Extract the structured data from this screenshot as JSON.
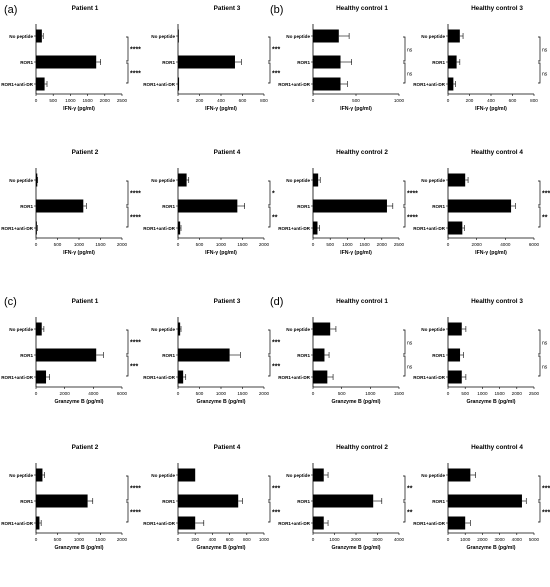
{
  "panel_labels": [
    "(a)",
    "(b)",
    "(c)",
    "(d)"
  ],
  "chart_data": [
    {
      "type": "bar",
      "orientation": "horizontal",
      "title": "Patient 1",
      "xlabel": "IFN-γ (pg/ml)",
      "categories": [
        "No peptide",
        "ROR1",
        "ROR1+anti-DR"
      ],
      "values": [
        170,
        1750,
        250
      ],
      "errors": [
        40,
        130,
        70
      ],
      "xlim": [
        0,
        2500
      ],
      "xticks": [
        "0",
        "500",
        "1000",
        "1500",
        "2000",
        "2500"
      ],
      "significance": [
        {
          "from": 0,
          "to": 1,
          "label": "****"
        },
        {
          "from": 1,
          "to": 2,
          "label": "****"
        }
      ]
    },
    {
      "type": "bar",
      "orientation": "horizontal",
      "title": "Patient 3",
      "xlabel": "IFN-γ (pg/ml)",
      "categories": [
        "No peptide",
        "ROR1",
        "ROR1+anti-DR"
      ],
      "values": [
        0,
        530,
        10
      ],
      "errors": [
        0,
        60,
        0
      ],
      "xlim": [
        0,
        800
      ],
      "xticks": [
        "0",
        "200",
        "400",
        "600",
        "800"
      ],
      "significance": [
        {
          "from": 0,
          "to": 1,
          "label": "***"
        },
        {
          "from": 1,
          "to": 2,
          "label": "***"
        }
      ]
    },
    {
      "type": "bar",
      "orientation": "horizontal",
      "title": "Healthy control 1",
      "xlabel": "IFN-γ (pg/ml)",
      "categories": [
        "No peptide",
        "ROR1",
        "ROR1+anti-DR"
      ],
      "values": [
        300,
        320,
        320
      ],
      "errors": [
        120,
        130,
        80
      ],
      "xlim": [
        0,
        1000
      ],
      "xticks": [
        "0",
        "500",
        "1000"
      ],
      "significance": [
        {
          "from": 0,
          "to": 1,
          "label": "ns"
        },
        {
          "from": 1,
          "to": 2,
          "label": "ns"
        }
      ]
    },
    {
      "type": "bar",
      "orientation": "horizontal",
      "title": "Healthy control 3",
      "xlabel": "IFN-γ (pg/ml)",
      "categories": [
        "No peptide",
        "ROR1",
        "ROR1+anti-DR"
      ],
      "values": [
        110,
        80,
        50
      ],
      "errors": [
        30,
        30,
        20
      ],
      "xlim": [
        0,
        800
      ],
      "xticks": [
        "0",
        "200",
        "400",
        "600",
        "800"
      ],
      "significance": [
        {
          "from": 0,
          "to": 1,
          "label": "ns"
        },
        {
          "from": 1,
          "to": 2,
          "label": "ns"
        }
      ]
    },
    {
      "type": "bar",
      "orientation": "horizontal",
      "title": "Patient 2",
      "xlabel": "IFN-γ (pg/ml)",
      "categories": [
        "No peptide",
        "ROR1",
        "ROR1+anti-DR"
      ],
      "values": [
        30,
        1100,
        20
      ],
      "errors": [
        10,
        70,
        10
      ],
      "xlim": [
        0,
        2000
      ],
      "xticks": [
        "0",
        "500",
        "1000",
        "1500",
        "2000"
      ],
      "significance": [
        {
          "from": 0,
          "to": 1,
          "label": "****"
        },
        {
          "from": 1,
          "to": 2,
          "label": "****"
        }
      ]
    },
    {
      "type": "bar",
      "orientation": "horizontal",
      "title": "Patient 4",
      "xlabel": "IFN-γ (pg/ml)",
      "categories": [
        "No peptide",
        "ROR1",
        "ROR1+anti-DR"
      ],
      "values": [
        200,
        1380,
        50
      ],
      "errors": [
        50,
        170,
        20
      ],
      "xlim": [
        0,
        2000
      ],
      "xticks": [
        "0",
        "500",
        "1000",
        "1500",
        "2000"
      ],
      "significance": [
        {
          "from": 0,
          "to": 1,
          "label": "*"
        },
        {
          "from": 1,
          "to": 2,
          "label": "**"
        }
      ]
    },
    {
      "type": "bar",
      "orientation": "horizontal",
      "title": "Healthy control 2",
      "xlabel": "IFN-γ (pg/ml)",
      "categories": [
        "No peptide",
        "ROR1",
        "ROR1+anti-DR"
      ],
      "values": [
        150,
        2150,
        130
      ],
      "errors": [
        60,
        170,
        60
      ],
      "xlim": [
        0,
        2500
      ],
      "xticks": [
        "0",
        "500",
        "1000",
        "1500",
        "2000",
        "2500"
      ],
      "significance": [
        {
          "from": 0,
          "to": 1,
          "label": "****"
        },
        {
          "from": 1,
          "to": 2,
          "label": "****"
        }
      ]
    },
    {
      "type": "bar",
      "orientation": "horizontal",
      "title": "Healthy control 4",
      "xlabel": "IFN-γ (pg/ml)",
      "categories": [
        "No peptide",
        "ROR1",
        "ROR1+anti-DR"
      ],
      "values": [
        1200,
        4400,
        1000
      ],
      "errors": [
        200,
        300,
        150
      ],
      "xlim": [
        0,
        6000
      ],
      "xticks": [
        "0",
        "2000",
        "4000",
        "6000"
      ],
      "significance": [
        {
          "from": 0,
          "to": 1,
          "label": "***"
        },
        {
          "from": 1,
          "to": 2,
          "label": "**"
        }
      ]
    },
    {
      "type": "bar",
      "orientation": "horizontal",
      "title": "Patient 1",
      "xlabel": "Granzyme B (pg/ml)",
      "categories": [
        "No peptide",
        "ROR1",
        "ROR1+anti-DR"
      ],
      "values": [
        400,
        4200,
        700
      ],
      "errors": [
        150,
        500,
        250
      ],
      "xlim": [
        0,
        6000
      ],
      "xticks": [
        "0",
        "2000",
        "4000",
        "6000"
      ],
      "significance": [
        {
          "from": 0,
          "to": 1,
          "label": "****"
        },
        {
          "from": 1,
          "to": 2,
          "label": "***"
        }
      ]
    },
    {
      "type": "bar",
      "orientation": "horizontal",
      "title": "Patient 3",
      "xlabel": "Granzyme B (pg/ml)",
      "categories": [
        "No peptide",
        "ROR1",
        "ROR1+anti-DR"
      ],
      "values": [
        50,
        1200,
        120
      ],
      "errors": [
        20,
        250,
        60
      ],
      "xlim": [
        0,
        2000
      ],
      "xticks": [
        "0",
        "500",
        "1000",
        "1500",
        "2000"
      ],
      "significance": [
        {
          "from": 0,
          "to": 1,
          "label": "***"
        },
        {
          "from": 1,
          "to": 2,
          "label": "***"
        }
      ]
    },
    {
      "type": "bar",
      "orientation": "horizontal",
      "title": "Healthy control 1",
      "xlabel": "Granzyme B (pg/ml)",
      "categories": [
        "No peptide",
        "ROR1",
        "ROR1+anti-DR"
      ],
      "values": [
        300,
        200,
        250
      ],
      "errors": [
        100,
        80,
        100
      ],
      "xlim": [
        0,
        1500
      ],
      "xticks": [
        "0",
        "500",
        "1000",
        "1500"
      ],
      "significance": [
        {
          "from": 0,
          "to": 1,
          "label": "ns"
        },
        {
          "from": 1,
          "to": 2,
          "label": "ns"
        }
      ]
    },
    {
      "type": "bar",
      "orientation": "horizontal",
      "title": "Healthy control 3",
      "xlabel": "Granzyme B (pg/ml)",
      "categories": [
        "No peptide",
        "ROR1",
        "ROR1+anti-DR"
      ],
      "values": [
        400,
        350,
        400
      ],
      "errors": [
        120,
        100,
        120
      ],
      "xlim": [
        0,
        2500
      ],
      "xticks": [
        "0",
        "500",
        "1000",
        "1500",
        "2000",
        "2500"
      ],
      "significance": [
        {
          "from": 0,
          "to": 1,
          "label": "ns"
        },
        {
          "from": 1,
          "to": 2,
          "label": "ns"
        }
      ]
    },
    {
      "type": "bar",
      "orientation": "horizontal",
      "title": "Patient 2",
      "xlabel": "Granzyme B (pg/ml)",
      "categories": [
        "No peptide",
        "ROR1",
        "ROR1+anti-DR"
      ],
      "values": [
        150,
        1200,
        80
      ],
      "errors": [
        50,
        120,
        40
      ],
      "xlim": [
        0,
        2000
      ],
      "xticks": [
        "0",
        "500",
        "1000",
        "1500",
        "2000"
      ],
      "significance": [
        {
          "from": 0,
          "to": 1,
          "label": "****"
        },
        {
          "from": 1,
          "to": 2,
          "label": "****"
        }
      ]
    },
    {
      "type": "bar",
      "orientation": "horizontal",
      "title": "Patient 4",
      "xlabel": "Granzyme B (pg/ml)",
      "categories": [
        "No peptide",
        "ROR1",
        "ROR1+anti-DR"
      ],
      "values": [
        200,
        700,
        200
      ],
      "errors": [
        0,
        50,
        100
      ],
      "xlim": [
        0,
        1000
      ],
      "xticks": [
        "0",
        "200",
        "400",
        "600",
        "800",
        "1000"
      ],
      "significance": [
        {
          "from": 0,
          "to": 1,
          "label": "***"
        },
        {
          "from": 1,
          "to": 2,
          "label": "***"
        }
      ]
    },
    {
      "type": "bar",
      "orientation": "horizontal",
      "title": "Healthy control 2",
      "xlabel": "Granzyme B (pg/ml)",
      "categories": [
        "No peptide",
        "ROR1",
        "ROR1+anti-DR"
      ],
      "values": [
        500,
        2800,
        500
      ],
      "errors": [
        200,
        400,
        200
      ],
      "xlim": [
        0,
        4000
      ],
      "xticks": [
        "0",
        "1000",
        "2000",
        "3000",
        "4000"
      ],
      "significance": [
        {
          "from": 0,
          "to": 1,
          "label": "**"
        },
        {
          "from": 1,
          "to": 2,
          "label": "**"
        }
      ]
    },
    {
      "type": "bar",
      "orientation": "horizontal",
      "title": "Healthy control 4",
      "xlabel": "Granzyme B (pg/ml)",
      "categories": [
        "No peptide",
        "ROR1",
        "ROR1+anti-DR"
      ],
      "values": [
        1300,
        4300,
        1000
      ],
      "errors": [
        300,
        250,
        300
      ],
      "xlim": [
        0,
        5000
      ],
      "xticks": [
        "0",
        "1000",
        "2000",
        "3000",
        "4000",
        "5000"
      ],
      "significance": [
        {
          "from": 0,
          "to": 1,
          "label": "****"
        },
        {
          "from": 1,
          "to": 2,
          "label": "****"
        }
      ]
    }
  ]
}
